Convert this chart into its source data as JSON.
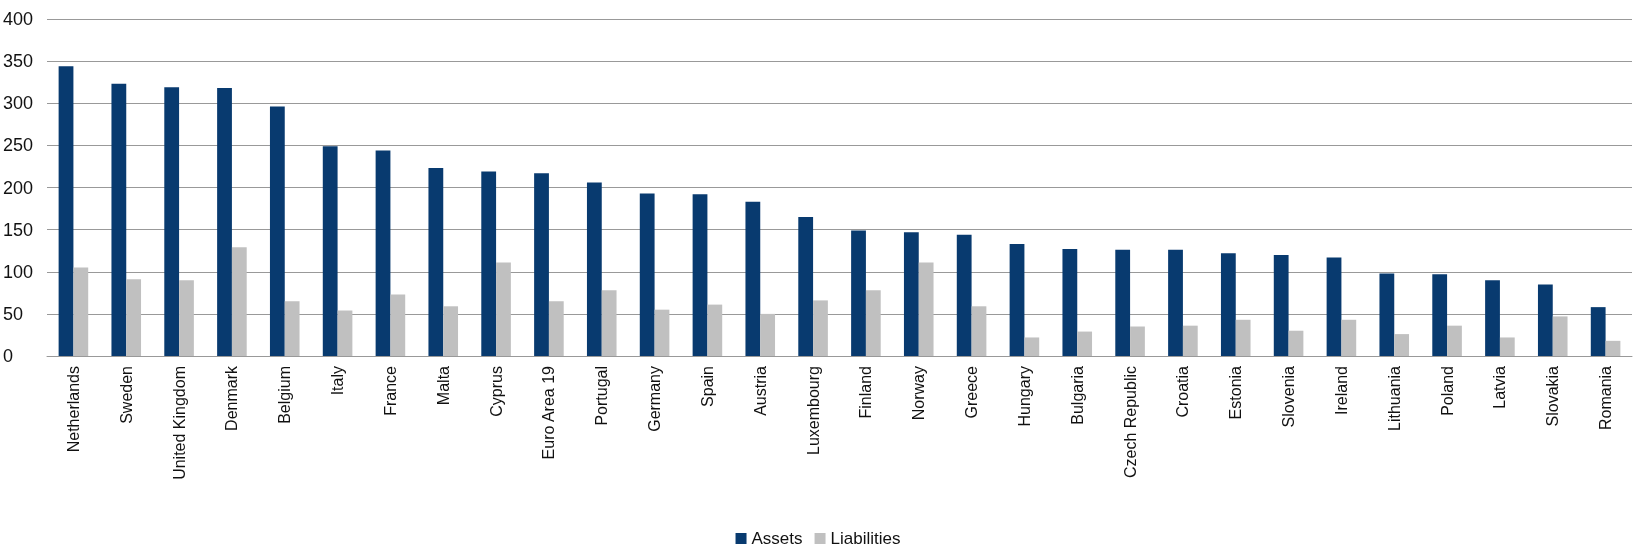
{
  "chart_data": {
    "type": "bar",
    "categories": [
      "Netherlands",
      "Sweden",
      "United Kingdom",
      "Denmark",
      "Belgium",
      "Italy",
      "France",
      "Malta",
      "Cyprus",
      "Euro Area 19",
      "Portugal",
      "Germany",
      "Spain",
      "Austria",
      "Luxembourg",
      "Finland",
      "Norway",
      "Greece",
      "Hungary",
      "Bulgaria",
      "Czech Republic",
      "Croatia",
      "Estonia",
      "Slovenia",
      "Ireland",
      "Lithuania",
      "Poland",
      "Latvia",
      "Slovakia",
      "Romania"
    ],
    "series": [
      {
        "name": "Assets",
        "color": "#083a6f",
        "values": [
          344,
          323,
          319,
          318,
          296,
          249,
          244,
          223,
          219,
          217,
          206,
          193,
          192,
          183,
          165,
          149,
          147,
          144,
          133,
          127,
          126,
          126,
          122,
          120,
          117,
          98,
          97,
          90,
          85,
          58
        ]
      },
      {
        "name": "Liabilities",
        "color": "#c0c0c0",
        "values": [
          105,
          91,
          90,
          129,
          65,
          54,
          73,
          59,
          111,
          65,
          78,
          55,
          61,
          50,
          66,
          78,
          111,
          59,
          22,
          29,
          35,
          36,
          43,
          30,
          43,
          26,
          36,
          22,
          47,
          18
        ]
      }
    ],
    "ylim": [
      0,
      400
    ],
    "yticks": [
      0,
      50,
      100,
      150,
      200,
      250,
      300,
      350,
      400
    ],
    "grid": "y",
    "legend": "bottom"
  }
}
